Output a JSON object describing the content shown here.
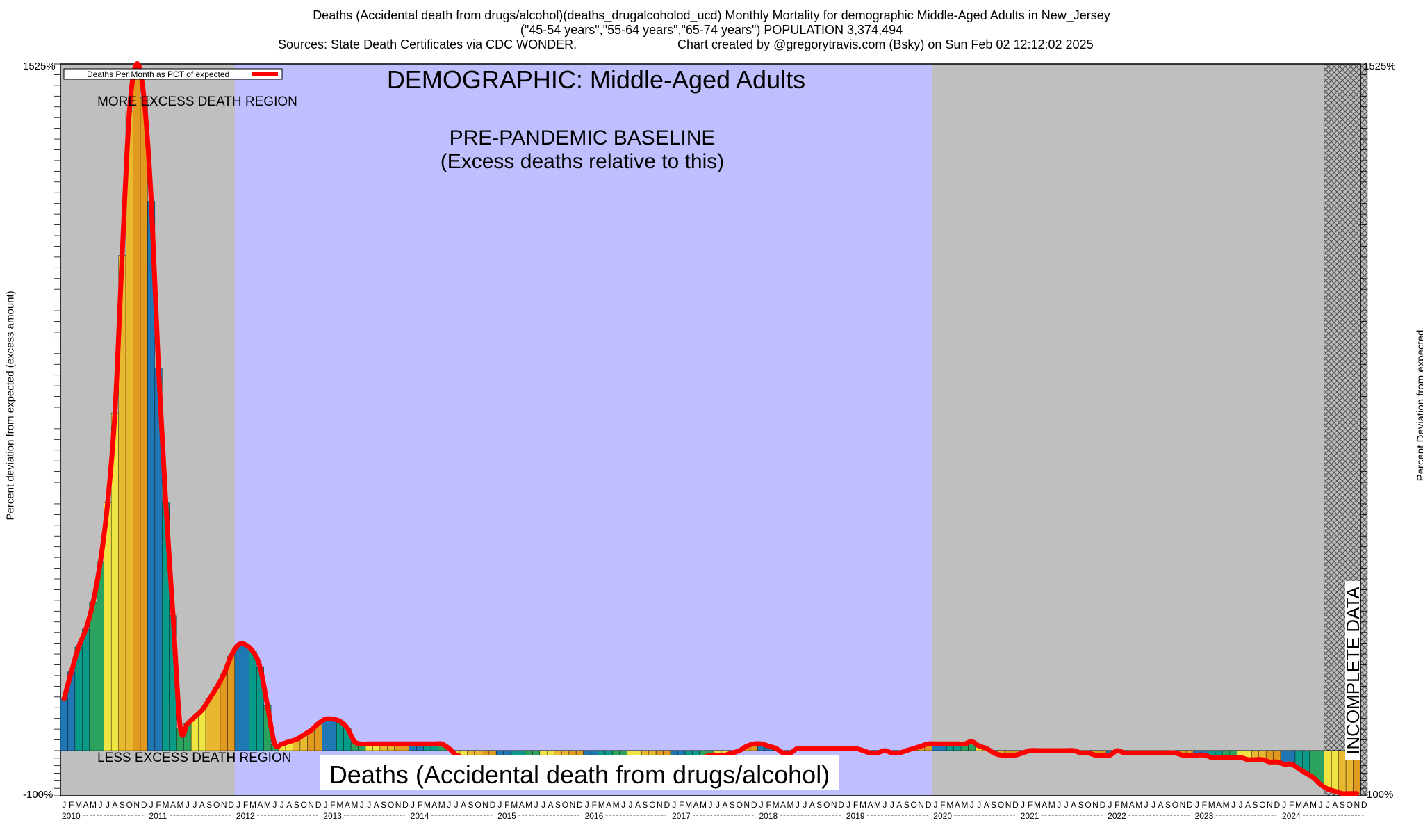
{
  "header": {
    "line1": "Deaths (Accidental death from drugs/alcohol)(deaths_drugalcoholod_ucd) Monthly Mortality for demographic Middle-Aged Adults in New_Jersey",
    "line2": "(\"45-54 years\",\"55-64 years\",\"65-74 years\") POPULATION 3,374,494",
    "sources": "Sources: State Death Certificates via CDC WONDER.",
    "credit": "Chart created by @gregorytravis.com (Bsky) on Sun Feb 02 12:12:02 2025"
  },
  "annotations": {
    "demographic": "DEMOGRAPHIC: Middle-Aged Adults",
    "baseline_1": "PRE-PANDEMIC BASELINE",
    "baseline_2": "(Excess deaths relative to this)",
    "more_region": "MORE EXCESS DEATH REGION",
    "less_region": "LESS EXCESS DEATH REGION",
    "metric": "Deaths (Accidental death from drugs/alcohol)",
    "incomplete": "INCOMPLETE DATA",
    "legend": "Deaths Per Month as PCT of expected"
  },
  "colors": {
    "baseline_band": "#bfbfff",
    "region_gray": "#bfbfbf",
    "line": "#ff0000",
    "bar_palette": [
      "#1f77b4",
      "#0a9a8a",
      "#2ca25f",
      "#f0e442",
      "#e8b830",
      "#e09a20"
    ]
  },
  "chart_data": {
    "type": "bar",
    "title": "Deaths (Accidental death from drugs/alcohol)(deaths_drugalcoholod_ucd) Monthly Mortality for demographic Middle-Aged Adults in New_Jersey",
    "ylabel_left": "Percent deviation from expected (excess amount)",
    "ylabel_right": "Percent Deviation from expected",
    "y_top_label": "1525%",
    "y_bottom_label": "-100%",
    "ylim": [
      -100,
      1525
    ],
    "month_letters": [
      "J",
      "F",
      "M",
      "A",
      "M",
      "J",
      "J",
      "A",
      "S",
      "O",
      "N",
      "D"
    ],
    "years": [
      "2010",
      "2011",
      "2012",
      "2013",
      "2014",
      "2015",
      "2016",
      "2017",
      "2018",
      "2019",
      "2020",
      "2021",
      "2022",
      "2023",
      "2024"
    ],
    "baseline_period": [
      "2012-01",
      "2019-12"
    ],
    "incomplete_period": [
      "2024-07",
      "2024-12"
    ],
    "series": [
      {
        "name": "Deaths Per Month as PCT of expected",
        "values": [
          115,
          175,
          230,
          270,
          330,
          420,
          550,
          750,
          1100,
          1420,
          1525,
          1450,
          1220,
          850,
          550,
          300,
          50,
          60,
          75,
          90,
          115,
          140,
          170,
          210,
          235,
          235,
          220,
          185,
          100,
          15,
          15,
          20,
          25,
          35,
          45,
          60,
          70,
          70,
          65,
          50,
          20,
          15,
          15,
          15,
          15,
          15,
          15,
          15,
          15,
          15,
          15,
          15,
          15,
          5,
          -10,
          -15,
          -15,
          -15,
          -15,
          -15,
          -15,
          -15,
          -15,
          -15,
          -15,
          -15,
          -15,
          -15,
          -15,
          -15,
          -15,
          -15,
          -15,
          -15,
          -15,
          -15,
          -15,
          -15,
          -15,
          -15,
          -15,
          -15,
          -15,
          -15,
          -15,
          -15,
          -15,
          -15,
          -15,
          -10,
          -10,
          -10,
          -5,
          0,
          10,
          15,
          15,
          10,
          5,
          -5,
          -5,
          5,
          5,
          5,
          5,
          5,
          5,
          5,
          5,
          5,
          0,
          -5,
          -5,
          0,
          -5,
          -5,
          0,
          5,
          10,
          15,
          15,
          15,
          15,
          15,
          15,
          20,
          10,
          5,
          -5,
          -10,
          -10,
          -10,
          -5,
          0,
          0,
          0,
          0,
          0,
          0,
          0,
          -5,
          -5,
          -10,
          -10,
          -10,
          0,
          -5,
          -5,
          -5,
          -5,
          -5,
          -5,
          -5,
          -5,
          -10,
          -10,
          -10,
          -10,
          -15,
          -15,
          -15,
          -15,
          -15,
          -20,
          -20,
          -20,
          -25,
          -25,
          -30,
          -30,
          -40,
          -50,
          -60,
          -75,
          -85,
          -90,
          -95,
          -95,
          -95
        ]
      }
    ]
  }
}
